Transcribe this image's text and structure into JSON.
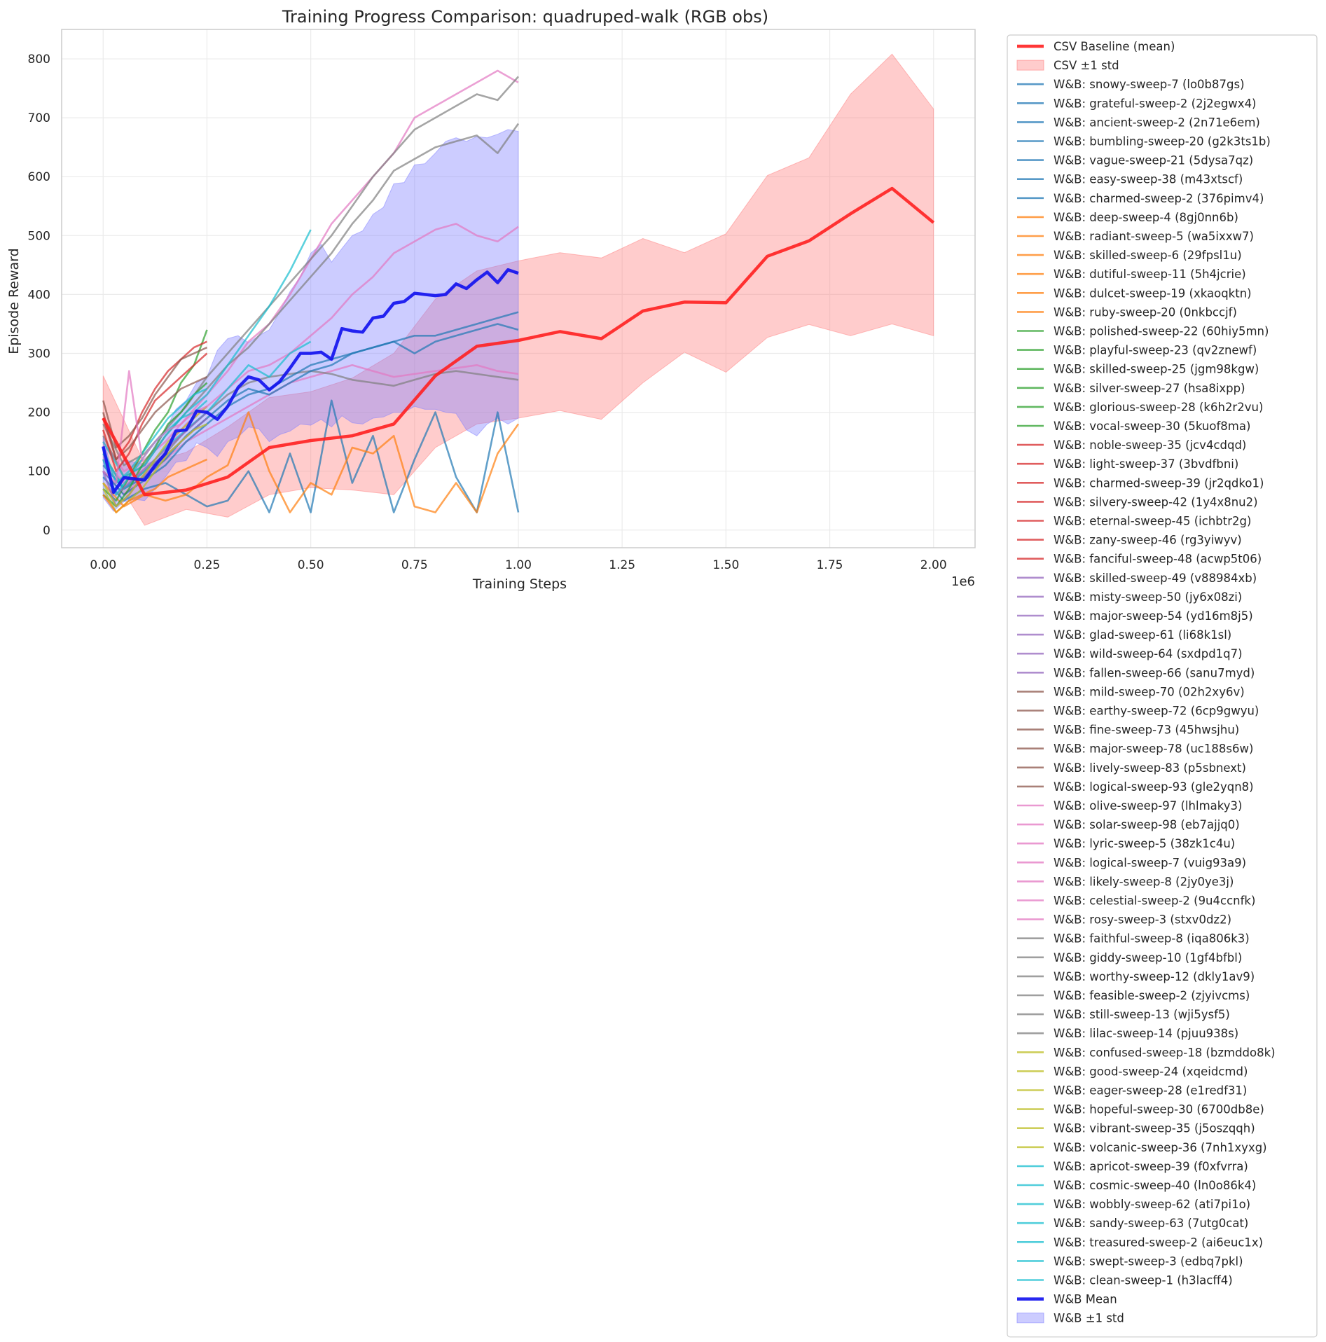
{
  "chart_data": {
    "type": "line",
    "title": "Training Progress Comparison: quadruped-walk (RGB obs)",
    "xlabel": "Training Steps",
    "ylabel": "Episode Reward",
    "x_offset_text": "1e6",
    "xlim": [
      -0.1,
      2.1
    ],
    "ylim": [
      -30,
      850
    ],
    "x_ticks": [
      0.0,
      0.25,
      0.5,
      0.75,
      1.0,
      1.25,
      1.5,
      1.75,
      2.0
    ],
    "x_tick_labels": [
      "0.00",
      "0.25",
      "0.50",
      "0.75",
      "1.00",
      "1.25",
      "1.50",
      "1.75",
      "2.00"
    ],
    "y_ticks": [
      0,
      100,
      200,
      300,
      400,
      500,
      600,
      700,
      800
    ],
    "y_tick_labels": [
      "0",
      "100",
      "200",
      "300",
      "400",
      "500",
      "600",
      "700",
      "800"
    ],
    "grid": true,
    "legend_position": "outside-right",
    "csv_baseline": {
      "name": "CSV Baseline (mean)",
      "band_name": "CSV ±1 std",
      "color": "#ff2020",
      "band_color": "#ff8080",
      "x": [
        0.0,
        0.1,
        0.2,
        0.3,
        0.4,
        0.5,
        0.6,
        0.7,
        0.8,
        0.9,
        1.0,
        1.1,
        1.2,
        1.3,
        1.4,
        1.5,
        1.6,
        1.7,
        1.8,
        1.9,
        2.0
      ],
      "mean": [
        190,
        60,
        68,
        90,
        140,
        152,
        160,
        180,
        262,
        312,
        322,
        337,
        325,
        372,
        387,
        386,
        465,
        491,
        537,
        580,
        522
      ],
      "upper": [
        262,
        112,
        132,
        175,
        225,
        235,
        258,
        300,
        392,
        440,
        457,
        471,
        462,
        495,
        471,
        503,
        602,
        632,
        740,
        808,
        715
      ],
      "lower": [
        120,
        8,
        35,
        22,
        60,
        72,
        68,
        60,
        140,
        180,
        190,
        203,
        188,
        250,
        302,
        268,
        327,
        349,
        330,
        350,
        330
      ]
    },
    "wandb_mean": {
      "name": "W&B Mean",
      "band_name": "W&B ±1 std",
      "color": "#1010ee",
      "band_color": "#8080ff",
      "x": [
        0.0,
        0.025,
        0.05,
        0.075,
        0.1,
        0.125,
        0.15,
        0.175,
        0.2,
        0.225,
        0.25,
        0.275,
        0.3,
        0.325,
        0.35,
        0.375,
        0.4,
        0.425,
        0.45,
        0.475,
        0.5,
        0.525,
        0.55,
        0.575,
        0.6,
        0.625,
        0.65,
        0.675,
        0.7,
        0.725,
        0.75,
        0.775,
        0.8,
        0.825,
        0.85,
        0.875,
        0.9,
        0.925,
        0.95,
        0.975,
        1.0
      ],
      "mean": [
        142,
        64,
        89,
        87,
        85,
        110,
        130,
        168,
        170,
        202,
        200,
        188,
        210,
        242,
        260,
        255,
        238,
        252,
        275,
        300,
        300,
        302,
        290,
        342,
        338,
        336,
        360,
        363,
        385,
        388,
        402,
        400,
        398,
        400,
        418,
        410,
        425,
        438,
        420,
        442,
        436
      ],
      "upper": [
        160,
        88,
        120,
        115,
        112,
        145,
        170,
        205,
        220,
        250,
        260,
        305,
        325,
        330,
        318,
        330,
        340,
        370,
        405,
        430,
        470,
        485,
        455,
        478,
        500,
        508,
        536,
        548,
        588,
        590,
        620,
        622,
        640,
        660,
        666,
        660,
        668,
        666,
        672,
        680,
        677
      ],
      "lower": [
        55,
        32,
        48,
        52,
        50,
        70,
        90,
        115,
        118,
        148,
        140,
        125,
        150,
        158,
        175,
        172,
        150,
        162,
        168,
        180,
        178,
        188,
        175,
        194,
        182,
        180,
        190,
        192,
        200,
        200,
        210,
        205,
        205,
        200,
        198,
        170,
        160,
        180,
        190,
        180,
        190
      ]
    },
    "sweep_groups": [
      {
        "color": "#1f77b4",
        "names": [
          "W&B: snowy-sweep-7 (lo0b87gs)",
          "W&B: grateful-sweep-2 (2j2egwx4)",
          "W&B: ancient-sweep-2 (2n71e6em)",
          "W&B: bumbling-sweep-20 (g2k3ts1b)",
          "W&B: vague-sweep-21 (5dysa7qz)",
          "W&B: easy-sweep-38 (m43xtscf)",
          "W&B: charmed-sweep-2 (376pimv4)"
        ]
      },
      {
        "color": "#ff7f0e",
        "names": [
          "W&B: deep-sweep-4 (8gj0nn6b)",
          "W&B: radiant-sweep-5 (wa5ixxw7)",
          "W&B: skilled-sweep-6 (29fpsl1u)",
          "W&B: dutiful-sweep-11 (5h4jcrie)",
          "W&B: dulcet-sweep-19 (xkaoqktn)",
          "W&B: ruby-sweep-20 (0nkbccjf)"
        ]
      },
      {
        "color": "#2ca02c",
        "names": [
          "W&B: polished-sweep-22 (60hiy5mn)",
          "W&B: playful-sweep-23 (qv2znewf)",
          "W&B: skilled-sweep-25 (jgm98kgw)",
          "W&B: silver-sweep-27 (hsa8ixpp)",
          "W&B: glorious-sweep-28 (k6h2r2vu)",
          "W&B: vocal-sweep-30 (5kuof8ma)"
        ]
      },
      {
        "color": "#d62728",
        "names": [
          "W&B: noble-sweep-35 (jcv4cdqd)",
          "W&B: light-sweep-37 (3bvdfbni)",
          "W&B: charmed-sweep-39 (jr2qdko1)",
          "W&B: silvery-sweep-42 (1y4x8nu2)",
          "W&B: eternal-sweep-45 (ichbtr2g)",
          "W&B: zany-sweep-46 (rg3yiwyv)",
          "W&B: fanciful-sweep-48 (acwp5t06)"
        ]
      },
      {
        "color": "#9467bd",
        "names": [
          "W&B: skilled-sweep-49 (v88984xb)",
          "W&B: misty-sweep-50 (jy6x08zi)",
          "W&B: major-sweep-54 (yd16m8j5)",
          "W&B: glad-sweep-61 (li68k1sl)",
          "W&B: wild-sweep-64 (sxdpd1q7)",
          "W&B: fallen-sweep-66 (sanu7myd)"
        ]
      },
      {
        "color": "#8c564b",
        "names": [
          "W&B: mild-sweep-70 (02h2xy6v)",
          "W&B: earthy-sweep-72 (6cp9gwyu)",
          "W&B: fine-sweep-73 (45hwsjhu)",
          "W&B: major-sweep-78 (uc188s6w)",
          "W&B: lively-sweep-83 (p5sbnext)",
          "W&B: logical-sweep-93 (gle2yqn8)"
        ]
      },
      {
        "color": "#e377c2",
        "names": [
          "W&B: olive-sweep-97 (lhlmaky3)",
          "W&B: solar-sweep-98 (eb7ajjq0)",
          "W&B: lyric-sweep-5 (38zk1c4u)",
          "W&B: logical-sweep-7 (vuig93a9)",
          "W&B: likely-sweep-8 (2jy0ye3j)",
          "W&B: celestial-sweep-2 (9u4ccnfk)",
          "W&B: rosy-sweep-3 (stxv0dz2)"
        ]
      },
      {
        "color": "#7f7f7f",
        "names": [
          "W&B: faithful-sweep-8 (iqa806k3)",
          "W&B: giddy-sweep-10 (1gf4bfbl)",
          "W&B: worthy-sweep-12 (dkly1av9)",
          "W&B: feasible-sweep-2 (zjyivcms)",
          "W&B: still-sweep-13 (wji5ysf5)",
          "W&B: lilac-sweep-14 (pjuu938s)"
        ]
      },
      {
        "color": "#bcbd22",
        "names": [
          "W&B: confused-sweep-18 (bzmddo8k)",
          "W&B: good-sweep-24 (xqeidcmd)",
          "W&B: eager-sweep-28 (e1redf31)",
          "W&B: hopeful-sweep-30 (6700db8e)",
          "W&B: vibrant-sweep-35 (j5oszqqh)",
          "W&B: volcanic-sweep-36 (7nh1xyxg)"
        ]
      },
      {
        "color": "#17becf",
        "names": [
          "W&B: apricot-sweep-39 (f0xfvrra)",
          "W&B: cosmic-sweep-40 (ln0o86k4)",
          "W&B: wobbly-sweep-62 (ati7pi1o)",
          "W&B: sandy-sweep-63 (7utg0cat)",
          "W&B: treasured-sweep-2 (ai6euc1x)",
          "W&B: swept-sweep-3 (edbq7pkl)",
          "W&B: clean-sweep-1 (h3lacff4)"
        ]
      }
    ],
    "long_runs": [
      {
        "color": "#e377c2",
        "x": [
          0.0,
          0.05,
          0.1,
          0.15,
          0.2,
          0.25,
          0.3,
          0.35,
          0.4,
          0.45,
          0.5,
          0.55,
          0.6,
          0.65,
          0.7,
          0.75,
          0.8,
          0.85,
          0.9,
          0.95,
          1.0
        ],
        "y": [
          150,
          100,
          120,
          150,
          190,
          230,
          270,
          320,
          350,
          400,
          460,
          520,
          560,
          600,
          640,
          700,
          720,
          740,
          760,
          780,
          760
        ]
      },
      {
        "color": "#e377c2",
        "x": [
          0.0,
          0.05,
          0.1,
          0.15,
          0.2,
          0.25,
          0.3,
          0.35,
          0.4,
          0.45,
          0.5,
          0.55,
          0.6,
          0.65,
          0.7,
          0.75,
          0.8,
          0.85,
          0.9,
          0.95,
          1.0
        ],
        "y": [
          120,
          80,
          100,
          140,
          180,
          210,
          240,
          270,
          280,
          300,
          330,
          360,
          400,
          430,
          470,
          490,
          510,
          520,
          500,
          490,
          515
        ]
      },
      {
        "color": "#e377c2",
        "x": [
          0.0,
          0.05,
          0.1,
          0.15,
          0.2,
          0.25,
          0.3,
          0.35,
          0.4,
          0.45,
          0.5,
          0.55,
          0.6,
          0.65,
          0.7,
          0.75,
          0.8,
          0.85,
          0.9,
          0.95,
          1.0
        ],
        "y": [
          100,
          60,
          90,
          120,
          150,
          170,
          190,
          210,
          230,
          250,
          260,
          270,
          280,
          270,
          260,
          265,
          270,
          275,
          280,
          270,
          265
        ]
      },
      {
        "color": "#7f7f7f",
        "x": [
          0.0,
          0.05,
          0.1,
          0.15,
          0.2,
          0.25,
          0.3,
          0.35,
          0.4,
          0.45,
          0.5,
          0.55,
          0.6,
          0.65,
          0.7,
          0.75,
          0.8,
          0.85,
          0.9,
          0.95,
          1.0
        ],
        "y": [
          180,
          110,
          130,
          170,
          210,
          260,
          300,
          340,
          380,
          420,
          460,
          500,
          550,
          600,
          640,
          680,
          700,
          720,
          740,
          730,
          770
        ]
      },
      {
        "color": "#7f7f7f",
        "x": [
          0.0,
          0.05,
          0.1,
          0.15,
          0.2,
          0.25,
          0.3,
          0.35,
          0.4,
          0.45,
          0.5,
          0.55,
          0.6,
          0.65,
          0.7,
          0.75,
          0.8,
          0.85,
          0.9,
          0.95,
          1.0
        ],
        "y": [
          160,
          90,
          110,
          160,
          200,
          240,
          280,
          310,
          350,
          390,
          430,
          470,
          520,
          560,
          610,
          630,
          650,
          660,
          670,
          640,
          690
        ]
      },
      {
        "color": "#7f7f7f",
        "x": [
          0.0,
          0.05,
          0.1,
          0.15,
          0.2,
          0.25,
          0.3,
          0.35,
          0.4,
          0.45,
          0.5,
          0.55,
          0.6,
          0.65,
          0.7,
          0.75,
          0.8,
          0.85,
          0.9,
          0.95,
          1.0
        ],
        "y": [
          130,
          70,
          100,
          130,
          170,
          200,
          230,
          250,
          260,
          265,
          270,
          265,
          255,
          250,
          245,
          255,
          265,
          270,
          265,
          260,
          255
        ]
      },
      {
        "color": "#1f77b4",
        "x": [
          0.0,
          0.05,
          0.1,
          0.15,
          0.2,
          0.25,
          0.3,
          0.35,
          0.4,
          0.45,
          0.5,
          0.55,
          0.6,
          0.65,
          0.7,
          0.75,
          0.8,
          0.85,
          0.9,
          0.95,
          1.0
        ],
        "y": [
          110,
          70,
          90,
          120,
          160,
          190,
          220,
          240,
          230,
          250,
          270,
          280,
          300,
          310,
          320,
          300,
          320,
          330,
          340,
          350,
          340
        ]
      },
      {
        "color": "#1f77b4",
        "x": [
          0.0,
          0.05,
          0.1,
          0.15,
          0.2,
          0.25,
          0.3,
          0.35,
          0.4,
          0.45,
          0.5,
          0.55,
          0.6,
          0.65,
          0.7,
          0.75,
          0.8,
          0.85,
          0.9,
          0.95,
          1.0
        ],
        "y": [
          100,
          60,
          85,
          110,
          150,
          180,
          210,
          230,
          240,
          260,
          280,
          290,
          300,
          310,
          320,
          330,
          330,
          340,
          350,
          360,
          370
        ]
      },
      {
        "color": "#1f77b4",
        "x": [
          0.0,
          0.05,
          0.1,
          0.15,
          0.2,
          0.25,
          0.3,
          0.35,
          0.4,
          0.45,
          0.5,
          0.55,
          0.6,
          0.65,
          0.7,
          0.75,
          0.8,
          0.85,
          0.9,
          0.95,
          1.0
        ],
        "y": [
          90,
          50,
          70,
          80,
          60,
          40,
          50,
          100,
          30,
          130,
          30,
          220,
          80,
          160,
          30,
          120,
          200,
          90,
          30,
          200,
          30
        ]
      },
      {
        "color": "#ff7f0e",
        "x": [
          0.0,
          0.05,
          0.1,
          0.15,
          0.2,
          0.25,
          0.3,
          0.35,
          0.4,
          0.45,
          0.5,
          0.55,
          0.6,
          0.65,
          0.7,
          0.75,
          0.8,
          0.85,
          0.9,
          0.95,
          1.0
        ],
        "y": [
          80,
          40,
          60,
          50,
          60,
          90,
          110,
          200,
          100,
          30,
          80,
          60,
          140,
          130,
          160,
          40,
          30,
          80,
          30,
          130,
          180
        ]
      },
      {
        "color": "#17becf",
        "x": [
          0.0,
          0.05,
          0.1,
          0.15,
          0.2,
          0.25,
          0.3,
          0.35,
          0.4,
          0.45,
          0.5
        ],
        "y": [
          150,
          90,
          110,
          160,
          200,
          230,
          280,
          330,
          380,
          440,
          510
        ]
      },
      {
        "color": "#17becf",
        "x": [
          0.0,
          0.05,
          0.1,
          0.15,
          0.2,
          0.25,
          0.3,
          0.35,
          0.4,
          0.45,
          0.5
        ],
        "y": [
          130,
          70,
          100,
          140,
          170,
          200,
          240,
          280,
          260,
          300,
          320
        ]
      }
    ],
    "short_runs": [
      {
        "color": "#2ca02c",
        "y": [
          70,
          50,
          90,
          130,
          170,
          200,
          250,
          280,
          340
        ]
      },
      {
        "color": "#2ca02c",
        "y": [
          60,
          40,
          70,
          110,
          140,
          180,
          200,
          230,
          250
        ]
      },
      {
        "color": "#d62728",
        "y": [
          190,
          120,
          150,
          200,
          240,
          270,
          290,
          310,
          320
        ]
      },
      {
        "color": "#d62728",
        "y": [
          170,
          100,
          130,
          180,
          220,
          240,
          260,
          280,
          300
        ]
      },
      {
        "color": "#9467bd",
        "y": [
          120,
          60,
          80,
          100,
          120,
          140,
          160,
          180,
          200
        ]
      },
      {
        "color": "#9467bd",
        "y": [
          100,
          40,
          60,
          90,
          110,
          130,
          150,
          170,
          190
        ]
      },
      {
        "color": "#8c564b",
        "y": [
          220,
          140,
          160,
          190,
          230,
          260,
          290,
          300,
          310
        ]
      },
      {
        "color": "#8c564b",
        "y": [
          200,
          120,
          140,
          170,
          200,
          220,
          240,
          250,
          260
        ]
      },
      {
        "color": "#bcbd22",
        "y": [
          80,
          40,
          60,
          90,
          120,
          150,
          170,
          190,
          210
        ]
      },
      {
        "color": "#bcbd22",
        "y": [
          70,
          30,
          50,
          70,
          100,
          130,
          150,
          170,
          180
        ]
      },
      {
        "color": "#17becf",
        "y": [
          140,
          80,
          100,
          130,
          160,
          190,
          210,
          230,
          240
        ]
      },
      {
        "color": "#17becf",
        "y": [
          120,
          60,
          90,
          120,
          150,
          170,
          190,
          200,
          220
        ]
      },
      {
        "color": "#e377c2",
        "y": [
          100,
          80,
          270,
          120,
          150,
          170,
          180,
          200,
          210
        ]
      },
      {
        "color": "#ff7f0e",
        "y": [
          60,
          30,
          50,
          60,
          70,
          90,
          100,
          110,
          120
        ]
      }
    ]
  }
}
